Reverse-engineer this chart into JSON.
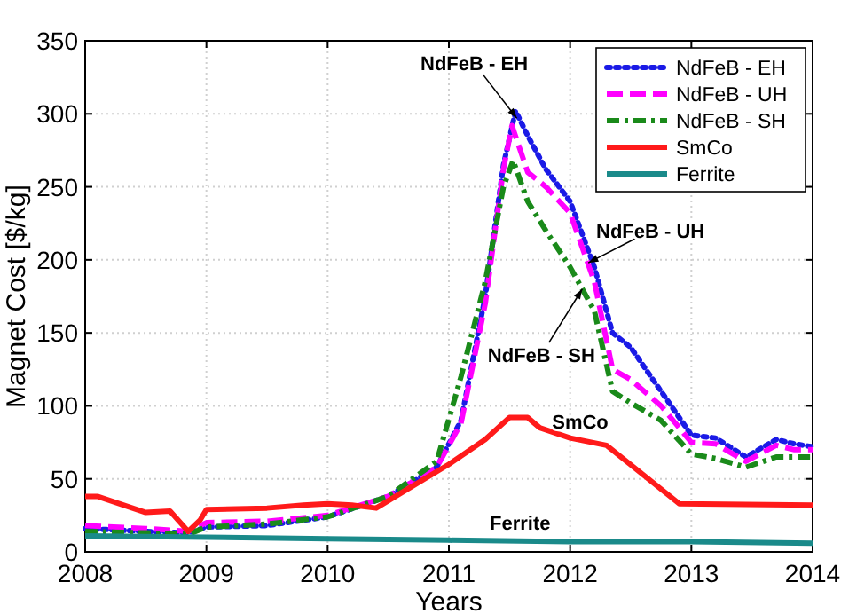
{
  "chart_data": {
    "type": "line",
    "xlabel": "Years",
    "ylabel": "Magnet Cost [$/kg]",
    "xlim": [
      2008,
      2014
    ],
    "xticks": [
      2008,
      2009,
      2010,
      2011,
      2012,
      2013,
      2014
    ],
    "ylim": [
      0,
      350
    ],
    "yticks": [
      0,
      50,
      100,
      150,
      200,
      250,
      300,
      350
    ],
    "grid": true,
    "legend": "top right",
    "marker": "none",
    "series": [
      {
        "name": "NdFeB - EH",
        "color": "#1a1ae6",
        "line_style": "dotted",
        "x": [
          2008,
          2008.5,
          2008.85,
          2009,
          2009.5,
          2010,
          2010.5,
          2010.9,
          2011.1,
          2011.3,
          2011.45,
          2011.55,
          2011.65,
          2011.8,
          2012,
          2012.2,
          2012.35,
          2012.5,
          2012.75,
          2013,
          2013.2,
          2013.45,
          2013.7,
          2013.85,
          2014
        ],
        "values": [
          16,
          14,
          13,
          17,
          18,
          24,
          38,
          58,
          90,
          175,
          265,
          302,
          285,
          262,
          240,
          195,
          150,
          140,
          110,
          80,
          78,
          65,
          77,
          74,
          72
        ]
      },
      {
        "name": "NdFeB - UH",
        "color": "#ff00ff",
        "line_style": "dashed",
        "x": [
          2008,
          2008.5,
          2008.85,
          2009,
          2009.5,
          2010,
          2010.5,
          2010.9,
          2011.1,
          2011.3,
          2011.45,
          2011.52,
          2011.65,
          2011.8,
          2012,
          2012.2,
          2012.35,
          2012.5,
          2012.75,
          2013,
          2013.2,
          2013.45,
          2013.7,
          2013.85,
          2014
        ],
        "values": [
          18,
          16,
          14,
          20,
          21,
          25,
          38,
          58,
          88,
          170,
          262,
          292,
          260,
          250,
          232,
          185,
          125,
          118,
          100,
          75,
          74,
          62,
          73,
          70,
          70
        ]
      },
      {
        "name": "NdFeB - SH",
        "color": "#1a8a1a",
        "line_style": "dashdot",
        "x": [
          2008,
          2008.5,
          2008.85,
          2009,
          2009.5,
          2010,
          2010.5,
          2010.9,
          2011.1,
          2011.3,
          2011.45,
          2011.53,
          2011.65,
          2011.8,
          2012,
          2012.2,
          2012.35,
          2012.5,
          2012.75,
          2013,
          2013.2,
          2013.45,
          2013.7,
          2013.85,
          2014
        ],
        "values": [
          14,
          13,
          12,
          17,
          19,
          24,
          38,
          62,
          120,
          185,
          250,
          268,
          240,
          220,
          195,
          165,
          110,
          102,
          90,
          67,
          64,
          58,
          65,
          65,
          65
        ]
      },
      {
        "name": "SmCo",
        "color": "#ff1a1a",
        "line_style": "solid",
        "x": [
          2008,
          2008.1,
          2008.5,
          2008.7,
          2008.85,
          2008.95,
          2009,
          2009.5,
          2009.8,
          2010,
          2010.2,
          2010.4,
          2010.7,
          2011,
          2011.3,
          2011.5,
          2011.65,
          2011.75,
          2012,
          2012.3,
          2012.9,
          2014
        ],
        "values": [
          38,
          38,
          27,
          28,
          14,
          22,
          29,
          30,
          32,
          33,
          32,
          30,
          45,
          60,
          77,
          92,
          92,
          85,
          78,
          73,
          33,
          32
        ]
      },
      {
        "name": "Ferrite",
        "color": "#1a8a8a",
        "line_style": "solid",
        "x": [
          2008,
          2009,
          2010,
          2011,
          2012,
          2013,
          2014
        ],
        "values": [
          11,
          10,
          9,
          8,
          7,
          7,
          6
        ]
      }
    ],
    "annotations": [
      {
        "text": "NdFeB - EH",
        "x": 2011.56,
        "y": 297
      },
      {
        "text": "NdFeB - UH",
        "x": 2012.15,
        "y": 198
      },
      {
        "text": "NdFeB - SH",
        "x": 2012.1,
        "y": 180
      },
      {
        "text": "SmCo",
        "x": 2012.2,
        "y": 75
      },
      {
        "text": "Ferrite",
        "x": 2011.5,
        "y": 8
      }
    ]
  }
}
